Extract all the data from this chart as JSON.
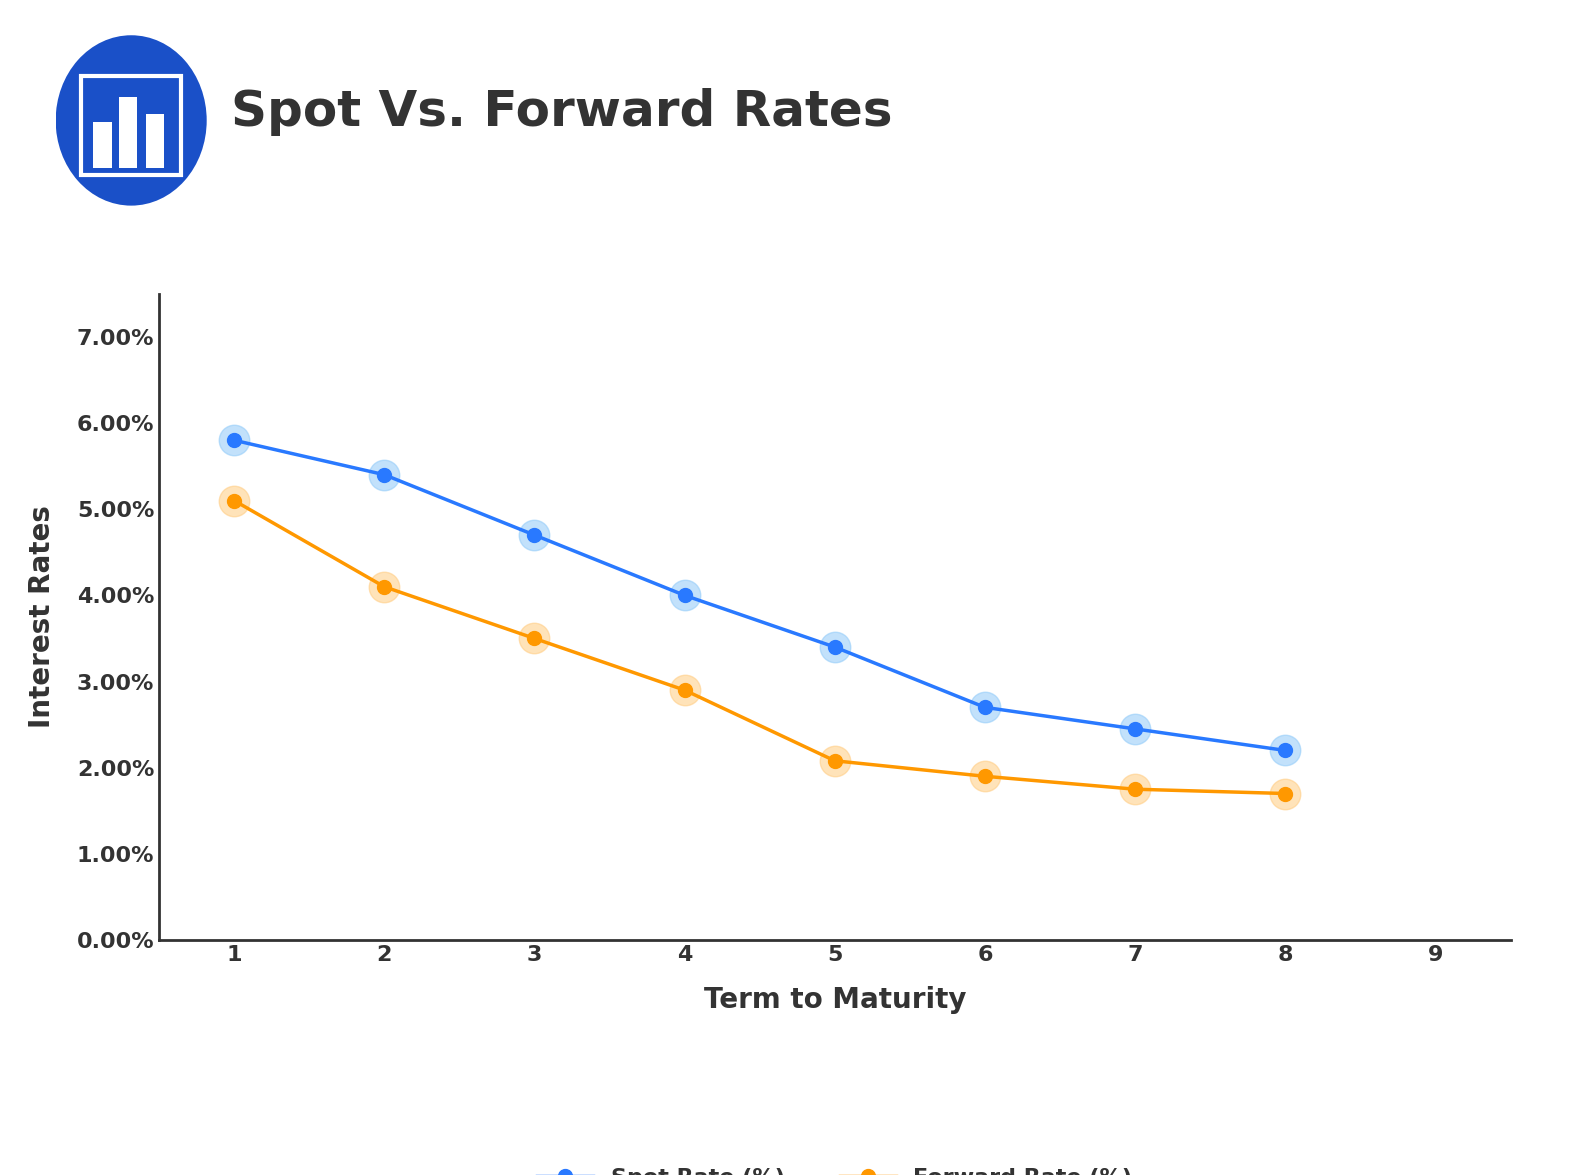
{
  "title": "Spot Vs. Forward Rates",
  "xlabel": "Term to Maturity",
  "ylabel": "Interest Rates",
  "xlim": [
    0.5,
    9.5
  ],
  "ylim": [
    0.0,
    0.075
  ],
  "xticks": [
    1,
    2,
    3,
    4,
    5,
    6,
    7,
    8,
    9
  ],
  "yticks": [
    0.0,
    0.01,
    0.02,
    0.03,
    0.04,
    0.05,
    0.06,
    0.07
  ],
  "ytick_labels": [
    "0.00%",
    "1.00%",
    "2.00%",
    "3.00%",
    "4.00%",
    "5.00%",
    "6.00%",
    "7.00%"
  ],
  "spot_x": [
    1,
    2,
    3,
    4,
    5,
    6,
    7,
    8
  ],
  "spot_y": [
    0.058,
    0.054,
    0.047,
    0.04,
    0.034,
    0.027,
    0.0245,
    0.022
  ],
  "forward_x": [
    1,
    2,
    3,
    4,
    5,
    6,
    7,
    8
  ],
  "forward_y": [
    0.051,
    0.041,
    0.035,
    0.029,
    0.0208,
    0.019,
    0.0175,
    0.017
  ],
  "spot_color": "#2979FF",
  "spot_halo_color": "#90CAF9",
  "forward_color": "#FF9800",
  "forward_halo_color": "#FFCC80",
  "line_width": 2.5,
  "marker_size": 10,
  "halo_size": 22,
  "title_color": "#333333",
  "title_fontsize": 36,
  "axis_label_fontsize": 20,
  "tick_fontsize": 16,
  "legend_fontsize": 16,
  "background_color": "#FFFFFF",
  "axis_color": "#333333",
  "icon_color": "#1A50C8"
}
